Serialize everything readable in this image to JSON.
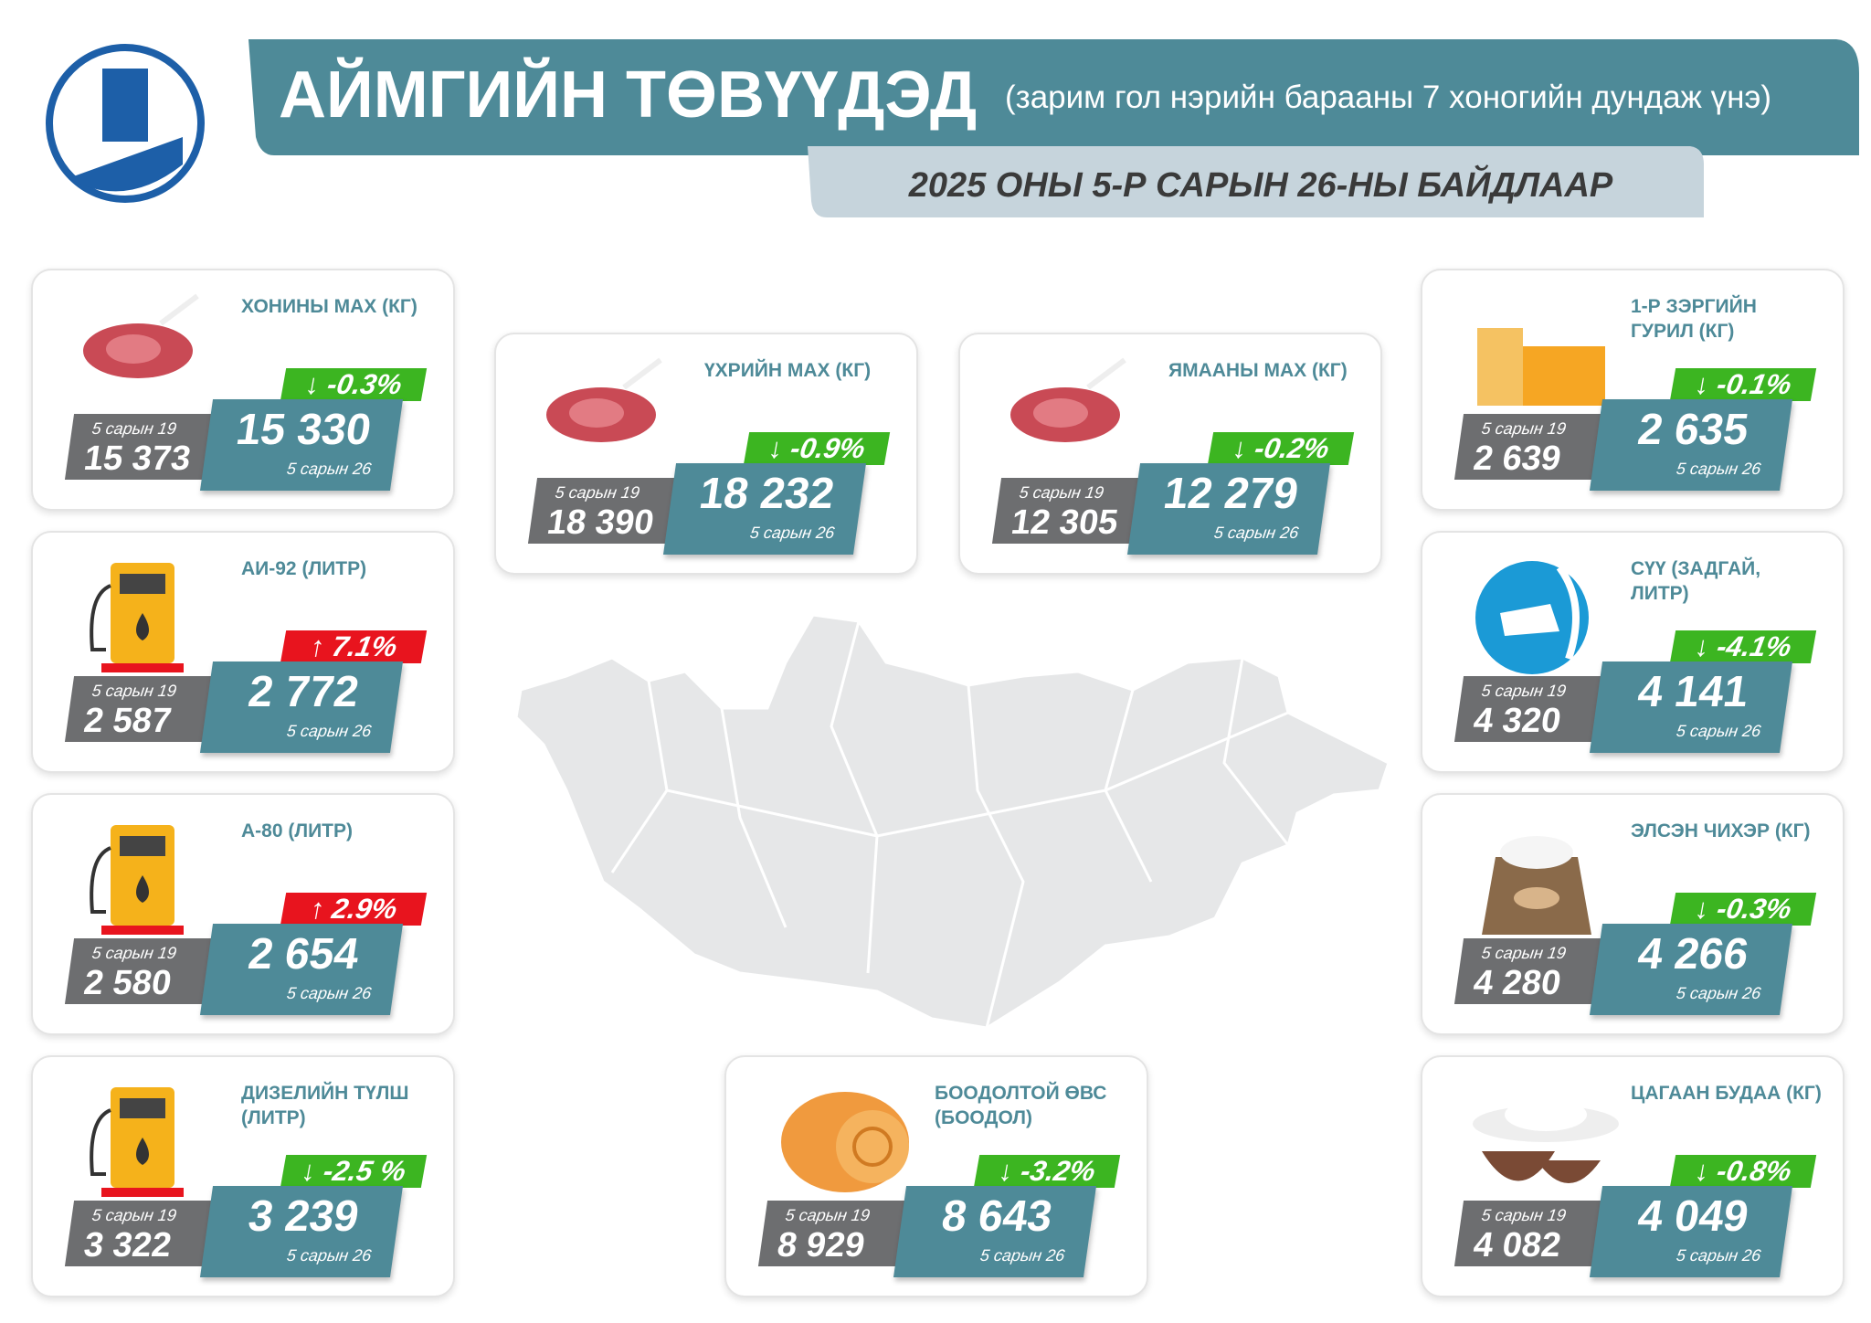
{
  "header": {
    "title": "АЙМГИЙН ТӨВҮҮДЭД",
    "subtitle": "(зарим гол нэрийн барааны 7 хоногийн дундаж үнэ)",
    "date": "2025 ОНЫ 5-Р САРЫН 26-НЫ БАЙДЛААР"
  },
  "cards": [
    {
      "name": "ХОНИНЫ МАХ (КГ)",
      "change": "↓ -0.3%",
      "color": "#3cb521",
      "prev_label": "5 сарын 19",
      "prev": "15 373",
      "curr": "15 330",
      "curr_label": "5 сарын 26"
    },
    {
      "name": "АИ-92 (ЛИТР)",
      "change": "↑ 7.1%",
      "color": "#e8141e",
      "prev_label": "5 сарын 19",
      "prev": "2 587",
      "curr": "2 772",
      "curr_label": "5 сарын 26"
    },
    {
      "name": "А-80 (ЛИТР)",
      "change": "↑ 2.9%",
      "color": "#e8141e",
      "prev_label": "5 сарын 19",
      "prev": "2 580",
      "curr": "2 654",
      "curr_label": "5 сарын 26"
    },
    {
      "name": "ДИЗЕЛИЙН ТҮЛШ (ЛИТР)",
      "change": "↓ -2.5 %",
      "color": "#3cb521",
      "prev_label": "5 сарын 19",
      "prev": "3 322",
      "curr": "3 239",
      "curr_label": "5 сарын 26"
    },
    {
      "name": "ҮХРИЙН МАХ (КГ)",
      "change": "↓ -0.9%",
      "color": "#3cb521",
      "prev_label": "5 сарын 19",
      "prev": "18 390",
      "curr": "18 232",
      "curr_label": "5 сарын 26"
    },
    {
      "name": "ЯМААНЫ МАХ (КГ)",
      "change": "↓ -0.2%",
      "color": "#3cb521",
      "prev_label": "5 сарын 19",
      "prev": "12 305",
      "curr": "12 279",
      "curr_label": "5 сарын 26"
    },
    {
      "name": "БООДОЛТОЙ ӨВС (БООДОЛ)",
      "change": "↓ -3.2%",
      "color": "#3cb521",
      "prev_label": "5 сарын 19",
      "prev": "8 929",
      "curr": "8 643",
      "curr_label": "5 сарын 26"
    },
    {
      "name": "1-Р ЗЭРГИЙН ГУРИЛ (КГ)",
      "change": "↓ -0.1%",
      "color": "#3cb521",
      "prev_label": "5 сарын 19",
      "prev": "2 639",
      "curr": "2 635",
      "curr_label": "5 сарын 26"
    },
    {
      "name": "СҮҮ (ЗАДГАЙ, ЛИТР)",
      "change": "↓ -4.1%",
      "color": "#3cb521",
      "prev_label": "5 сарын 19",
      "prev": "4 320",
      "curr": "4 141",
      "curr_label": "5 сарын 26"
    },
    {
      "name": "ЭЛСЭН ЧИХЭР (КГ)",
      "change": "↓ -0.3%",
      "color": "#3cb521",
      "prev_label": "5 сарын 19",
      "prev": "4 280",
      "curr": "4 266",
      "curr_label": "5 сарын 26"
    },
    {
      "name": "ЦАГААН БУДАА (КГ)",
      "change": "↓ -0.8%",
      "color": "#3cb521",
      "prev_label": "5 сарын 19",
      "prev": "4 082",
      "curr": "4 049",
      "curr_label": "5 сарын 26"
    }
  ]
}
